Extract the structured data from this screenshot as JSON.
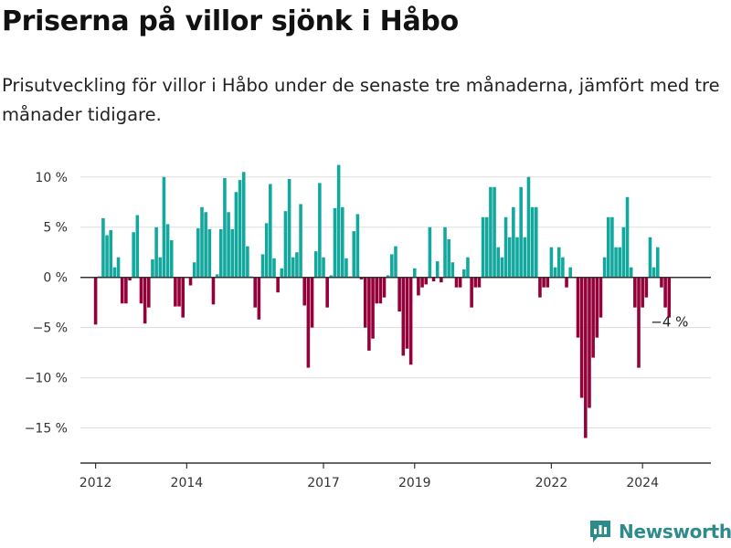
{
  "chart_data": {
    "type": "bar",
    "title": "Priserna på villor sjönk i Håbo",
    "subtitle": "Prisutveckling för villor i Håbo under de senaste tre månaderna, jämfört med tre månader tidigare.",
    "xlabel": "",
    "ylabel": "",
    "y_unit": "%",
    "ylim": [
      -18.5,
      10.8
    ],
    "x_range": [
      2011.667,
      2025.5
    ],
    "y_ticks": [
      10,
      5,
      0,
      -5,
      -10,
      -15
    ],
    "y_tick_labels": [
      "10 %",
      "5 %",
      "0 %",
      "−5 %",
      "−10 %",
      "−15 %"
    ],
    "x_ticks": [
      2012,
      2014,
      2017,
      2019,
      2022,
      2024
    ],
    "x_tick_labels": [
      "2012",
      "2014",
      "2017",
      "2019",
      "2022",
      "2024"
    ],
    "start": 2012,
    "step": 0.0833333,
    "positive_color": "#13a89e",
    "negative_color": "#94003a",
    "grid": true,
    "values": [
      -4.7,
      0.1,
      5.9,
      4.2,
      4.7,
      1.0,
      2.0,
      -2.6,
      -2.6,
      -0.3,
      4.5,
      6.2,
      -2.6,
      -4.6,
      -3.0,
      1.8,
      5.0,
      2.0,
      10.0,
      5.3,
      3.7,
      -2.9,
      -2.9,
      -4.0,
      0.0,
      -0.8,
      1.5,
      4.9,
      7.0,
      6.5,
      4.8,
      -2.7,
      0.3,
      4.8,
      9.9,
      6.5,
      4.8,
      8.5,
      9.7,
      10.5,
      3.1,
      0.1,
      -3.0,
      -4.2,
      2.3,
      5.4,
      9.3,
      1.9,
      -1.5,
      0.9,
      6.6,
      9.8,
      2.0,
      2.5,
      7.3,
      -2.8,
      -9.0,
      -5.0,
      2.6,
      9.4,
      2.0,
      -3.0,
      0.2,
      6.9,
      11.2,
      7.0,
      1.9,
      0.1,
      4.6,
      6.3,
      -0.2,
      -5.0,
      -7.3,
      -6.1,
      -2.6,
      -2.6,
      -2.0,
      0.2,
      2.3,
      3.1,
      -3.4,
      -7.8,
      -7.1,
      -8.7,
      0.9,
      -1.8,
      -1.0,
      -0.7,
      5.0,
      -0.4,
      1.6,
      -0.5,
      5.0,
      3.8,
      1.5,
      -1.0,
      -1.0,
      0.8,
      2.0,
      -3.0,
      -1.0,
      -1.0,
      6.0,
      6.0,
      9.0,
      9.0,
      3.0,
      2.0,
      6.0,
      4.0,
      7.0,
      4.0,
      9.0,
      4.0,
      10.0,
      7.0,
      7.0,
      -2.0,
      -1.0,
      -1.0,
      3.0,
      1.0,
      3.0,
      2.0,
      -1.0,
      1.0,
      0.0,
      -6.0,
      -12.0,
      -16.0,
      -13.0,
      -8.0,
      -6.0,
      -4.0,
      2.0,
      6.0,
      6.0,
      3.0,
      3.0,
      5.0,
      8.0,
      1.0,
      -3.0,
      -9.0,
      -3.0,
      -2.0,
      4.0,
      1.0,
      3.0,
      -1.0,
      -3.0,
      -4.0
    ],
    "annotation": {
      "label": "−4 %",
      "value": -4
    }
  },
  "logo": {
    "text": "Newsworthy"
  }
}
